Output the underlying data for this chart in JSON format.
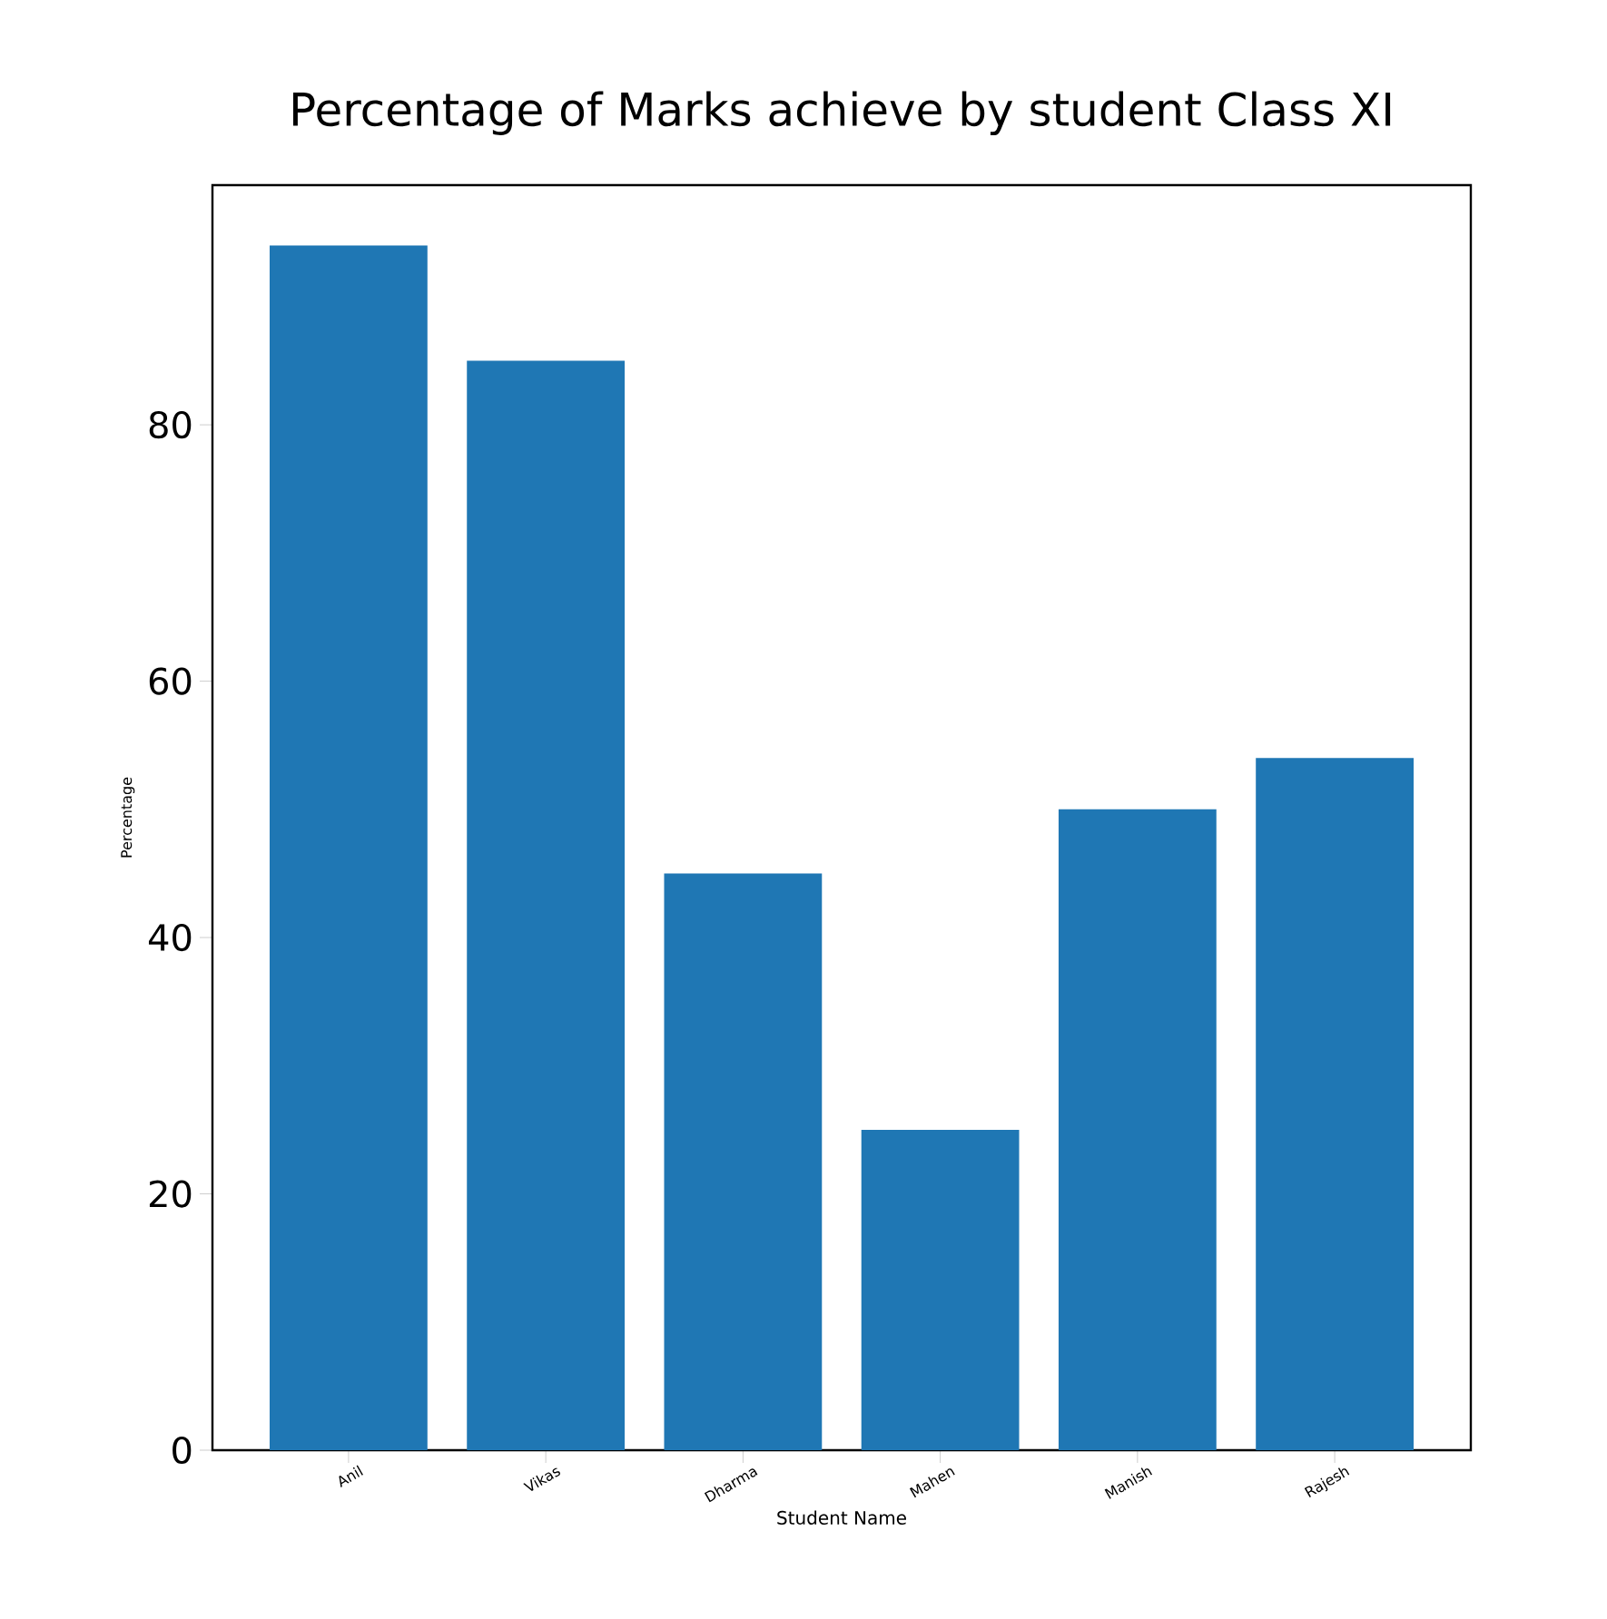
{
  "chart_data": {
    "type": "bar",
    "title": "Percentage of Marks achieve by student Class XI",
    "xlabel": "Student Name",
    "ylabel": "Percentage",
    "categories": [
      "Anil",
      "Vikas",
      "Dharma",
      "Mahen",
      "Manish",
      "Rajesh"
    ],
    "values": [
      94,
      85,
      45,
      25,
      50,
      54
    ],
    "color": "#1f77b4",
    "ylim": [
      0,
      98.7
    ],
    "yticks": [
      0,
      20,
      40,
      60,
      80
    ],
    "grid": false
  }
}
